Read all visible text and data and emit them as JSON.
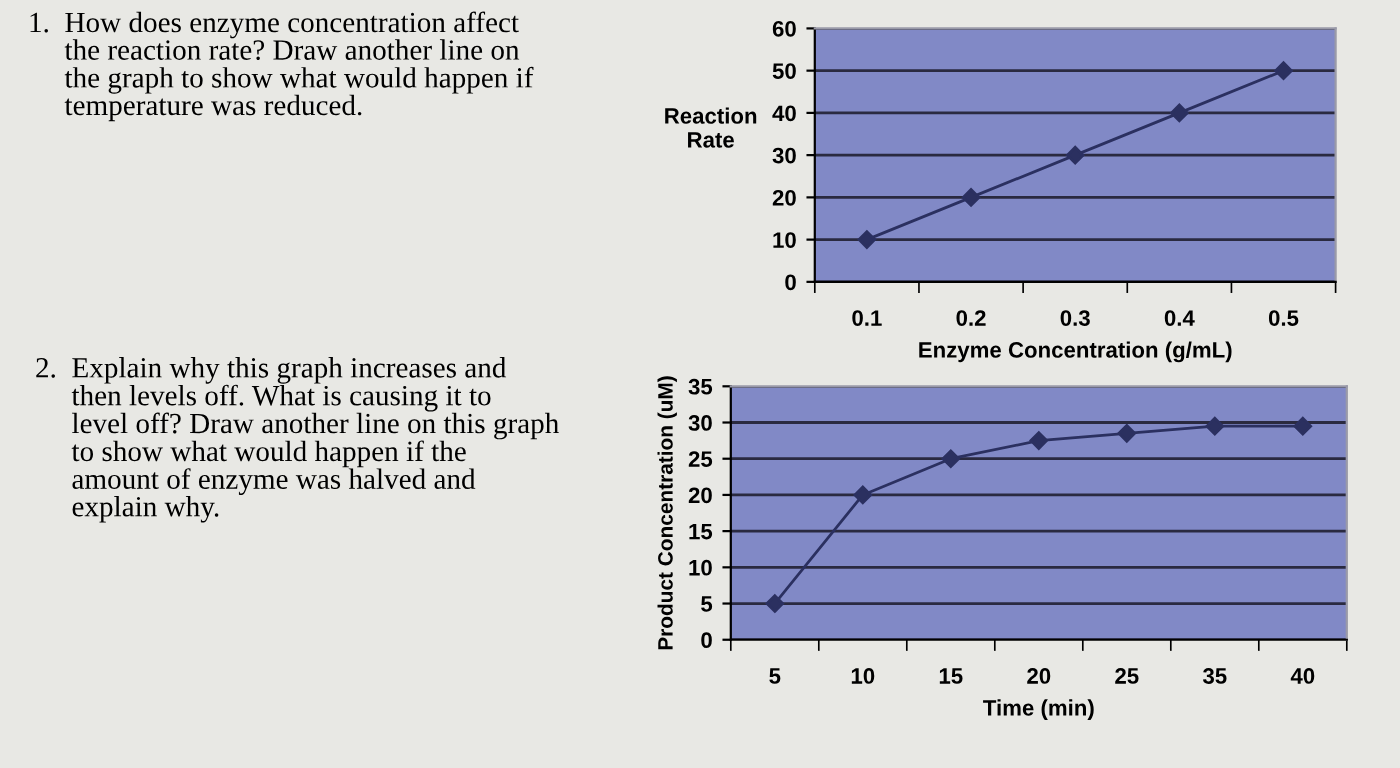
{
  "chart_data": [
    {
      "type": "line",
      "ylabel": "Reaction\nRate",
      "xlabel": "Enzyme Concentration (g/mL)",
      "categories": [
        "0.1",
        "0.2",
        "0.3",
        "0.4",
        "0.5"
      ],
      "series": [
        {
          "color": "#2b3060",
          "values": [
            10,
            20,
            30,
            40,
            50
          ]
        }
      ],
      "ylim": [
        0,
        60
      ],
      "yticks": [
        0,
        10,
        20,
        30,
        40,
        50,
        60
      ],
      "grid": "y",
      "marker": "diamond",
      "line_style": "solid",
      "annotations": [
        "1.  How does enzyme concentration affect\n     the reaction rate? Draw another line on\n     the graph to show what would happen if\n     temperature was reduced."
      ]
    },
    {
      "type": "line",
      "ylabel": "Product Concentration (uM)",
      "xlabel": "Time (min)",
      "categories": [
        "5",
        "10",
        "15",
        "20",
        "25",
        "35",
        "40"
      ],
      "series": [
        {
          "color": "#2b3060",
          "values": [
            5,
            20,
            25,
            27.5,
            28.5,
            29.5,
            29.5
          ]
        }
      ],
      "ylim": [
        0,
        35
      ],
      "yticks": [
        0,
        5,
        10,
        15,
        20,
        25,
        30,
        35
      ],
      "grid": "y",
      "marker": "diamond",
      "line_style": "solid",
      "annotations": [
        "2.  Explain why this graph increases and\n     then levels off. What is causing it to\n     level off? Draw another line on this graph\n     to show what would happen if the\n     amount of enzyme was halved and\n     explain why."
      ]
    }
  ]
}
